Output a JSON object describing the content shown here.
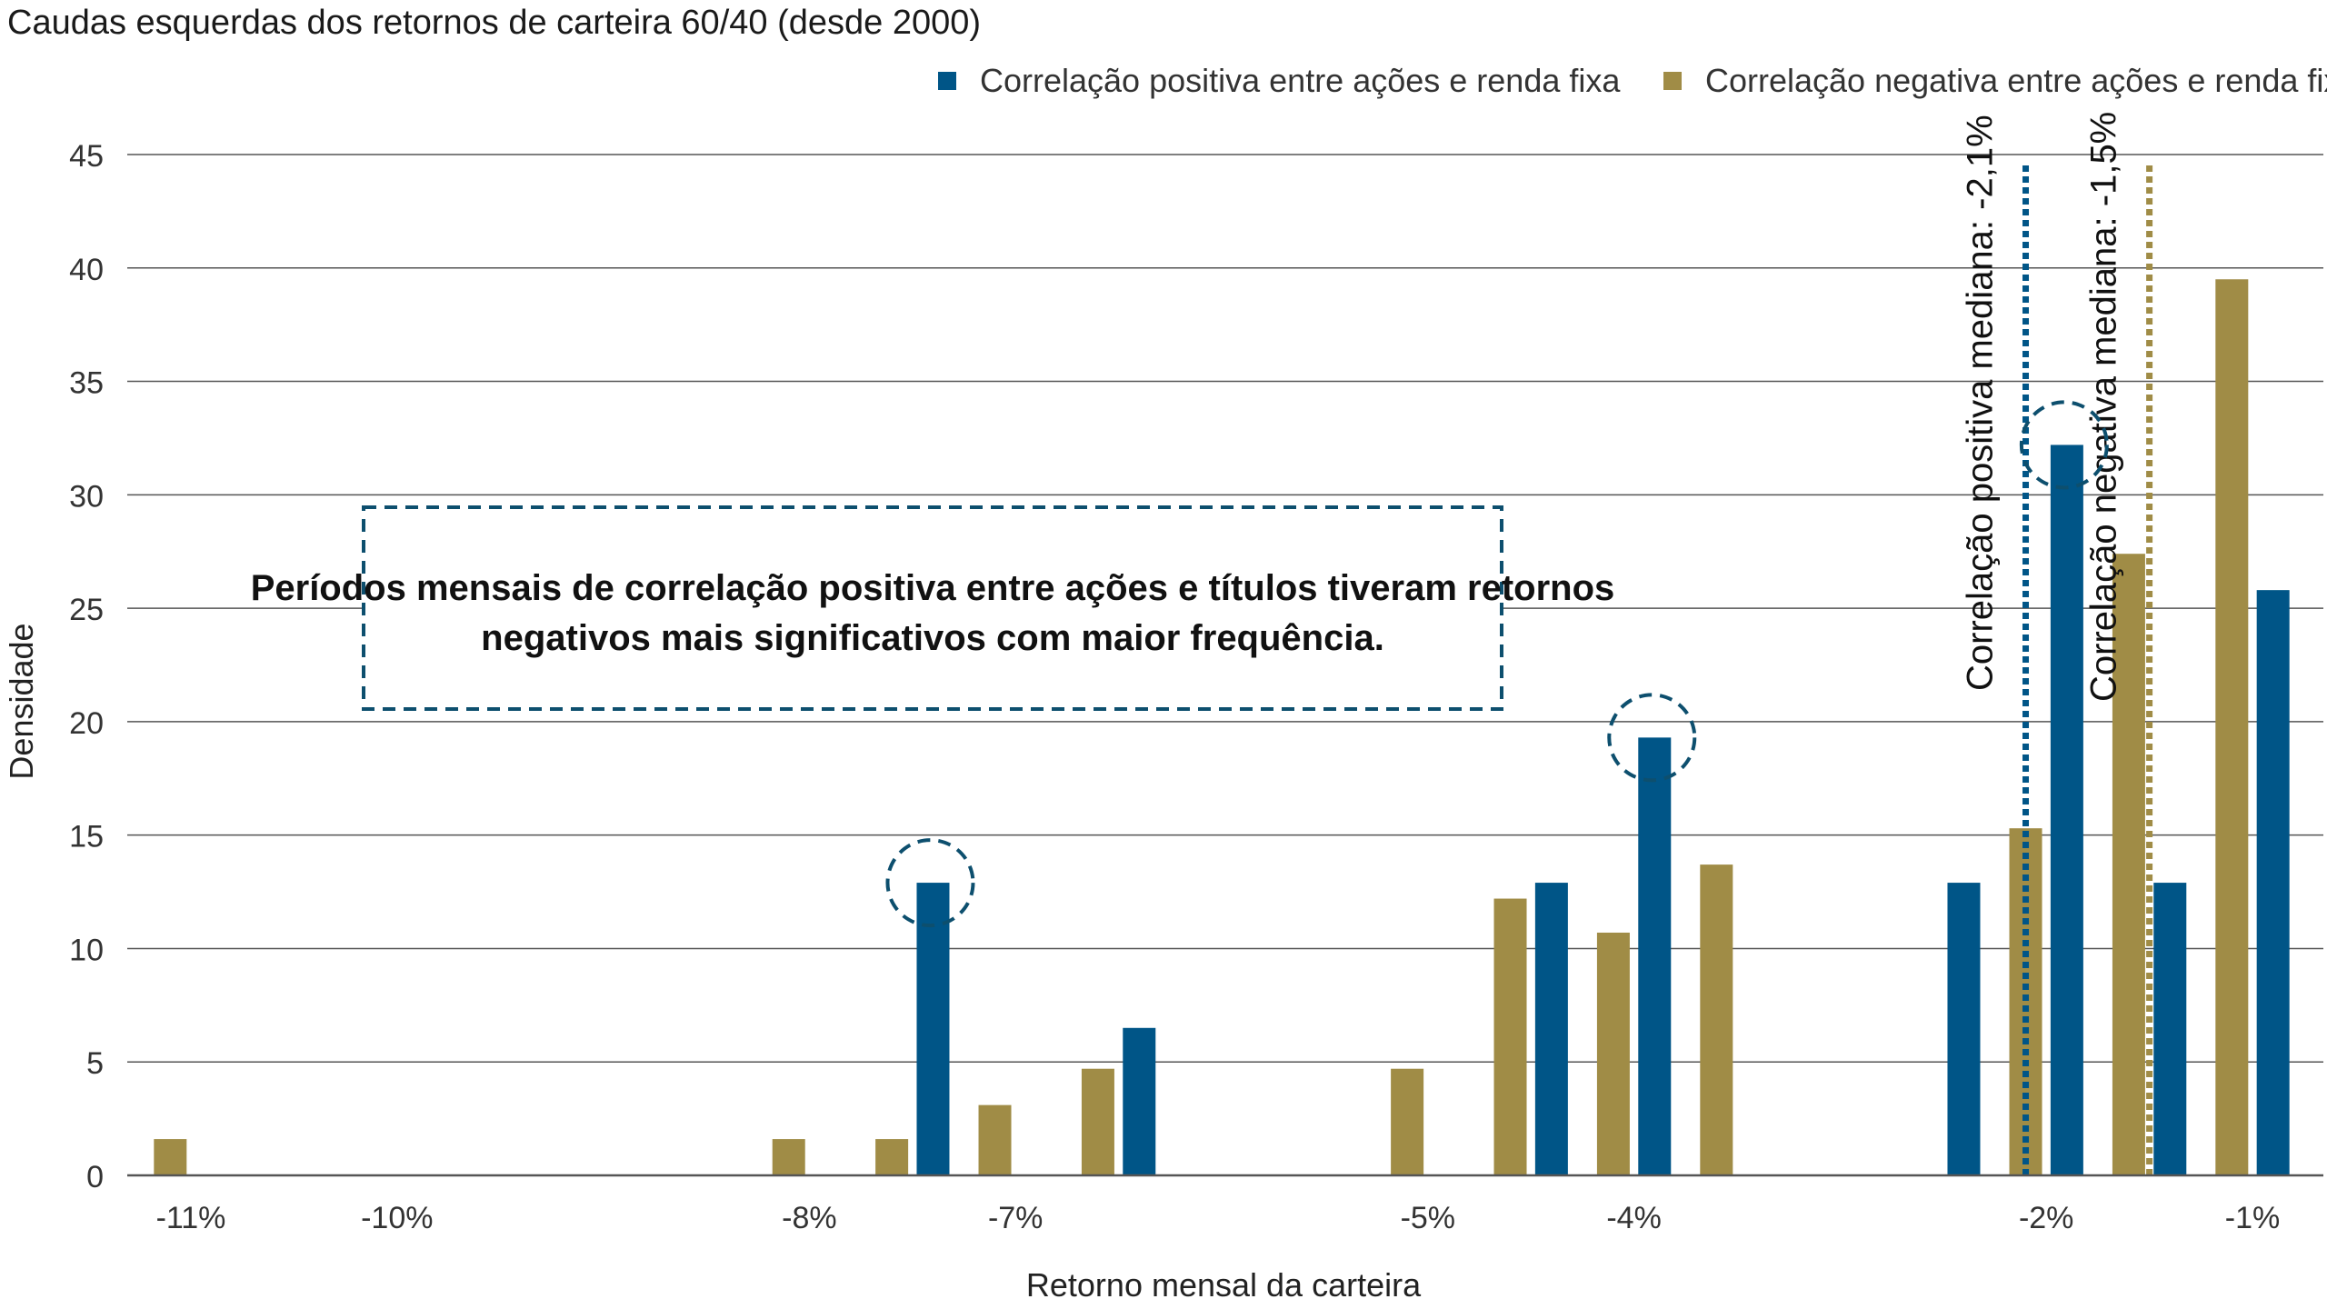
{
  "chart_data": {
    "type": "bar",
    "title": "Caudas esquerdas dos retornos de carteira 60/40 (desde 2000)",
    "xlabel": "Retorno mensal da carteira",
    "ylabel": "Densidade",
    "ylim": [
      0,
      45
    ],
    "yticks": [
      0,
      5,
      10,
      15,
      20,
      25,
      30,
      35,
      40,
      45
    ],
    "xlim": [
      -11.1,
      -0.85
    ],
    "xticks": [
      {
        "value": -11,
        "label": "-11%"
      },
      {
        "value": -10,
        "label": "-10%"
      },
      {
        "value": -8,
        "label": "-8%"
      },
      {
        "value": -7,
        "label": "-7%"
      },
      {
        "value": -5,
        "label": "-5%"
      },
      {
        "value": -4,
        "label": "-4%"
      },
      {
        "value": -2,
        "label": "-2%"
      },
      {
        "value": -1,
        "label": "-1%"
      }
    ],
    "grid": true,
    "legend_position": "top-right",
    "series": [
      {
        "name": "Correlação positiva entre ações e renda fixa",
        "color": "#005587",
        "points": [
          {
            "x": -7.4,
            "y": 12.9
          },
          {
            "x": -6.4,
            "y": 6.5
          },
          {
            "x": -4.4,
            "y": 12.9
          },
          {
            "x": -3.9,
            "y": 19.3
          },
          {
            "x": -2.4,
            "y": 12.9
          },
          {
            "x": -1.9,
            "y": 32.2
          },
          {
            "x": -1.4,
            "y": 12.9
          },
          {
            "x": -0.9,
            "y": 25.8
          }
        ]
      },
      {
        "name": "Correlação negativa entre ações e renda fixa",
        "color": "#a08c46",
        "points": [
          {
            "x": -11.1,
            "y": 1.6
          },
          {
            "x": -8.1,
            "y": 1.6
          },
          {
            "x": -7.6,
            "y": 1.6
          },
          {
            "x": -7.1,
            "y": 3.1
          },
          {
            "x": -6.6,
            "y": 4.7
          },
          {
            "x": -5.1,
            "y": 4.7
          },
          {
            "x": -4.6,
            "y": 12.2
          },
          {
            "x": -4.1,
            "y": 10.7
          },
          {
            "x": -3.6,
            "y": 13.7
          },
          {
            "x": -2.1,
            "y": 15.3
          },
          {
            "x": -1.6,
            "y": 27.4
          },
          {
            "x": -1.1,
            "y": 39.5
          }
        ]
      }
    ],
    "median_lines": [
      {
        "x": -2.1,
        "color": "#005587",
        "label": "Correlação positiva mediana: -2,1%"
      },
      {
        "x": -1.5,
        "color": "#a08c46",
        "label": "Correlação negativa mediana: -1,5%"
      }
    ],
    "highlight_circles": [
      {
        "series": 0,
        "x": -7.4,
        "y": 12.9
      },
      {
        "series": 0,
        "x": -3.9,
        "y": 19.3
      },
      {
        "series": 0,
        "x": -1.9,
        "y": 32.2
      }
    ],
    "annotation": "Períodos mensais de correlação positiva entre ações e títulos tiveram retornos negativos mais significativos com maior frequência."
  }
}
